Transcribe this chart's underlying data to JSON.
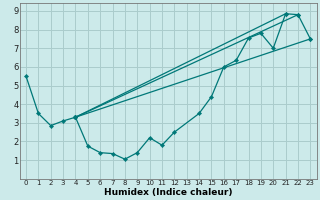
{
  "xlabel": "Humidex (Indice chaleur)",
  "bg_color": "#cceaea",
  "grid_color": "#aacccc",
  "line_color": "#007878",
  "xlim": [
    -0.5,
    23.5
  ],
  "ylim": [
    0,
    9.4
  ],
  "xticks": [
    0,
    1,
    2,
    3,
    4,
    5,
    6,
    7,
    8,
    9,
    10,
    11,
    12,
    13,
    14,
    15,
    16,
    17,
    18,
    19,
    20,
    21,
    22,
    23
  ],
  "yticks": [
    1,
    2,
    3,
    4,
    5,
    6,
    7,
    8,
    9
  ],
  "s1x": [
    0,
    1,
    2,
    3,
    4
  ],
  "s1y": [
    5.5,
    3.5,
    2.85,
    3.1,
    3.3
  ],
  "s2x": [
    4,
    5,
    6,
    7,
    8,
    9,
    10,
    11,
    12,
    14,
    15,
    16,
    17,
    18,
    19,
    20,
    21,
    22,
    23
  ],
  "s2y": [
    3.3,
    1.75,
    1.4,
    1.35,
    1.05,
    1.4,
    2.2,
    1.8,
    2.5,
    3.5,
    4.4,
    6.0,
    6.35,
    7.55,
    7.8,
    7.0,
    8.85,
    8.8,
    7.5
  ],
  "diag_lines": [
    {
      "x": [
        4,
        21
      ],
      "y": [
        3.3,
        8.85
      ]
    },
    {
      "x": [
        4,
        22
      ],
      "y": [
        3.3,
        8.8
      ]
    },
    {
      "x": [
        4,
        23
      ],
      "y": [
        3.3,
        7.5
      ]
    }
  ]
}
